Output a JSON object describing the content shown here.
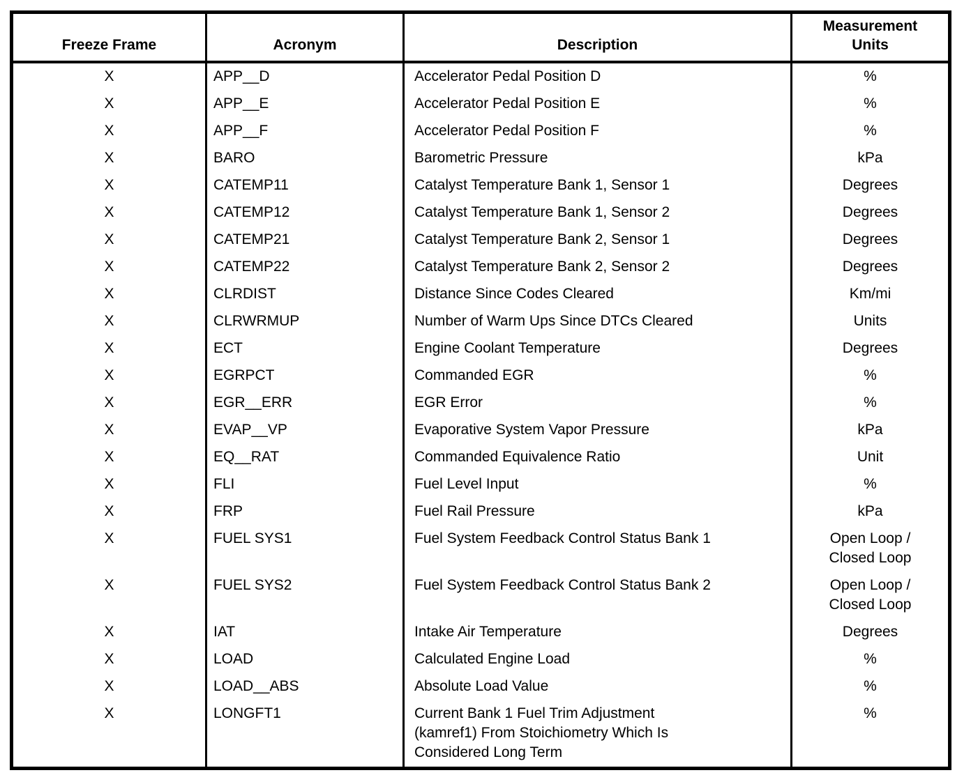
{
  "table": {
    "headers": [
      "Freeze Frame",
      "Acronym",
      "Description",
      "Measurement\nUnits"
    ],
    "rows": [
      {
        "freeze": "X",
        "acronym": "APP__D",
        "description": "Accelerator Pedal Position D",
        "units": "%"
      },
      {
        "freeze": "X",
        "acronym": "APP__E",
        "description": "Accelerator Pedal Position E",
        "units": "%"
      },
      {
        "freeze": "X",
        "acronym": "APP__F",
        "description": "Accelerator Pedal Position F",
        "units": "%"
      },
      {
        "freeze": "X",
        "acronym": "BARO",
        "description": "Barometric Pressure",
        "units": "kPa"
      },
      {
        "freeze": "X",
        "acronym": "CATEMP11",
        "description": "Catalyst Temperature Bank 1, Sensor 1",
        "units": "Degrees"
      },
      {
        "freeze": "X",
        "acronym": "CATEMP12",
        "description": "Catalyst Temperature Bank 1, Sensor 2",
        "units": "Degrees"
      },
      {
        "freeze": "X",
        "acronym": "CATEMP21",
        "description": "Catalyst Temperature Bank 2, Sensor 1",
        "units": "Degrees"
      },
      {
        "freeze": "X",
        "acronym": "CATEMP22",
        "description": "Catalyst Temperature Bank 2, Sensor 2",
        "units": "Degrees"
      },
      {
        "freeze": "X",
        "acronym": "CLRDIST",
        "description": "Distance Since Codes Cleared",
        "units": "Km/mi"
      },
      {
        "freeze": "X",
        "acronym": "CLRWRMUP",
        "description": "Number of Warm Ups Since DTCs Cleared",
        "units": "Units"
      },
      {
        "freeze": "X",
        "acronym": "ECT",
        "description": "Engine Coolant Temperature",
        "units": "Degrees"
      },
      {
        "freeze": "X",
        "acronym": "EGRPCT",
        "description": "Commanded EGR",
        "units": "%"
      },
      {
        "freeze": "X",
        "acronym": "EGR__ERR",
        "description": "EGR Error",
        "units": "%"
      },
      {
        "freeze": "X",
        "acronym": "EVAP__VP",
        "description": "Evaporative System Vapor Pressure",
        "units": "kPa"
      },
      {
        "freeze": "X",
        "acronym": "EQ__RAT",
        "description": "Commanded Equivalence Ratio",
        "units": "Unit"
      },
      {
        "freeze": "X",
        "acronym": "FLI",
        "description": "Fuel Level Input",
        "units": "%"
      },
      {
        "freeze": "X",
        "acronym": "FRP",
        "description": "Fuel Rail Pressure",
        "units": "kPa"
      },
      {
        "freeze": "X",
        "acronym": "FUEL SYS1",
        "description": "Fuel System Feedback Control Status Bank 1",
        "units": "Open Loop /\nClosed Loop"
      },
      {
        "freeze": "X",
        "acronym": "FUEL SYS2",
        "description": "Fuel System Feedback Control Status Bank 2",
        "units": "Open Loop /\nClosed Loop"
      },
      {
        "freeze": "X",
        "acronym": "IAT",
        "description": "Intake Air Temperature",
        "units": "Degrees"
      },
      {
        "freeze": "X",
        "acronym": "LOAD",
        "description": "Calculated Engine Load",
        "units": "%"
      },
      {
        "freeze": "X",
        "acronym": "LOAD__ABS",
        "description": "Absolute Load Value",
        "units": "%"
      },
      {
        "freeze": "X",
        "acronym": "LONGFT1",
        "description": "Current Bank 1 Fuel Trim Adjustment\n(kamref1) From Stoichiometry Which Is\nConsidered Long Term",
        "units": "%"
      }
    ]
  }
}
